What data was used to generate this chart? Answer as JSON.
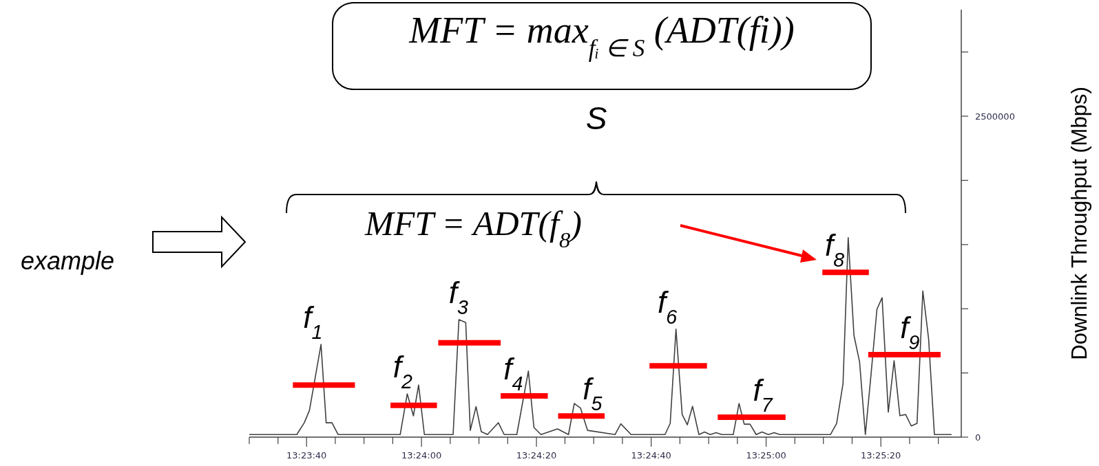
{
  "chart_data": {
    "type": "line",
    "ylabel": "Downlink Throughput (Mbps)",
    "xlim": [
      13.39167,
      13.42611
    ],
    "xticks": [
      {
        "value": 13.39167,
        "label": null
      },
      {
        "value": 13.39306,
        "label": null
      },
      {
        "value": 13.39444,
        "label": "13:23:40"
      },
      {
        "value": 13.39583,
        "label": null
      },
      {
        "value": 13.39722,
        "label": null
      },
      {
        "value": 13.39861,
        "label": null
      },
      {
        "value": 13.4,
        "label": "13:24:00"
      },
      {
        "value": 13.40139,
        "label": null
      },
      {
        "value": 13.40278,
        "label": null
      },
      {
        "value": 13.40417,
        "label": null
      },
      {
        "value": 13.40556,
        "label": "13:24:20"
      },
      {
        "value": 13.40694,
        "label": null
      },
      {
        "value": 13.40833,
        "label": null
      },
      {
        "value": 13.40972,
        "label": null
      },
      {
        "value": 13.41111,
        "label": "13:24:40"
      },
      {
        "value": 13.4125,
        "label": null
      },
      {
        "value": 13.41389,
        "label": null
      },
      {
        "value": 13.41528,
        "label": null
      },
      {
        "value": 13.41667,
        "label": "13:25:00"
      },
      {
        "value": 13.41806,
        "label": null
      },
      {
        "value": 13.41944,
        "label": null
      },
      {
        "value": 13.42083,
        "label": null
      },
      {
        "value": 13.42222,
        "label": "13:25:20"
      },
      {
        "value": 13.42361,
        "label": null
      },
      {
        "value": 13.425,
        "label": null
      }
    ],
    "ylim": [
      0,
      3330000
    ],
    "yticks": [
      0,
      {
        "value": 500000,
        "label": null
      },
      {
        "value": 1000000,
        "label": null
      },
      {
        "value": 1500000,
        "label": null
      },
      {
        "value": 2000000,
        "label": null
      },
      2500000,
      {
        "value": 3000000,
        "label": null
      }
    ],
    "series": [
      {
        "color": "#404040",
        "x": [
          13.39167,
          13.39397,
          13.39433,
          13.39458,
          13.39514,
          13.39539,
          13.39567,
          13.39597,
          13.39897,
          13.39931,
          13.39961,
          13.39986,
          13.40014,
          13.40153,
          13.40181,
          13.40214,
          13.40236,
          13.40264,
          13.40289,
          13.40319,
          13.40372,
          13.404,
          13.40461,
          13.40517,
          13.40544,
          13.40578,
          13.40658,
          13.40711,
          13.40739,
          13.40769,
          13.40803,
          13.40936,
          13.40964,
          13.41014,
          13.41178,
          13.41203,
          13.41231,
          13.41261,
          13.41286,
          13.41311,
          13.41342,
          13.41369,
          13.41397,
          13.41425,
          13.41453,
          13.41508,
          13.41536,
          13.41561,
          13.41589,
          13.41619,
          13.41647,
          13.41678,
          13.41706,
          13.41733,
          13.41978,
          13.42008,
          13.42039,
          13.42064,
          13.42092,
          13.42119,
          13.42147,
          13.42175,
          13.42203,
          13.42228,
          13.42258,
          13.42286,
          13.42314,
          13.42342,
          13.42369,
          13.42397,
          13.42425,
          13.42453,
          13.42481,
          13.42564
        ],
        "values": [
          20000,
          20000,
          112000,
          208000,
          722000,
          112000,
          112000,
          20000,
          20000,
          337000,
          166000,
          406000,
          20000,
          20000,
          915000,
          893000,
          53000,
          238000,
          43000,
          20000,
          112000,
          20000,
          20000,
          515000,
          75000,
          20000,
          64000,
          20000,
          262000,
          227000,
          53000,
          20000,
          104000,
          20000,
          20000,
          107000,
          841000,
          176000,
          96000,
          240000,
          20000,
          40000,
          20000,
          35000,
          20000,
          20000,
          262000,
          101000,
          101000,
          20000,
          40000,
          20000,
          35000,
          20000,
          20000,
          107000,
          417000,
          1553000,
          791000,
          587000,
          20000,
          497000,
          996000,
          1086000,
          194000,
          595000,
          167000,
          176000,
          87000,
          107000,
          1139000,
          765000,
          20000,
          20000
        ]
      },
      {
        "name": "f$_{1}$",
        "color": "#ff0000",
        "x": [
          13.39378,
          13.39678
        ],
        "values": [
          406000,
          406000
        ]
      },
      {
        "name": "f$_{2}$",
        "color": "#ff0000",
        "x": [
          13.3985,
          13.40075
        ],
        "values": [
          248000,
          248000
        ]
      },
      {
        "name": "f$_{3}$",
        "color": "#ff0000",
        "x": [
          13.40081,
          13.40383
        ],
        "values": [
          735000,
          735000
        ]
      },
      {
        "name": "f$_{4}$",
        "color": "#ff0000",
        "x": [
          13.40383,
          13.40611
        ],
        "values": [
          321000,
          321000
        ]
      },
      {
        "name": "f$_{5}$",
        "color": "#ff0000",
        "x": [
          13.40661,
          13.40886
        ],
        "values": [
          164000,
          164000
        ]
      },
      {
        "name": "f$_{6}$",
        "color": "#ff0000",
        "x": [
          13.41103,
          13.41381
        ],
        "values": [
          556000,
          556000
        ]
      },
      {
        "name": "f$_{7}$",
        "color": "#ff0000",
        "x": [
          13.41433,
          13.41761
        ],
        "values": [
          155000,
          155000
        ]
      },
      {
        "name": "f$_{8}$",
        "color": "#ff0000",
        "x": [
          13.41939,
          13.42164
        ],
        "values": [
          1284000,
          1284000
        ]
      },
      {
        "name": "f$_{9}$",
        "color": "#ff0000",
        "x": [
          13.42161,
          13.42511
        ],
        "values": [
          642000,
          642000
        ]
      }
    ],
    "annotations": [
      "MFT = max$_{fᵢ ∈ S}$ (ADT(fi))",
      "S",
      "MFT = ADT(f$_{8}$)",
      "example"
    ]
  }
}
